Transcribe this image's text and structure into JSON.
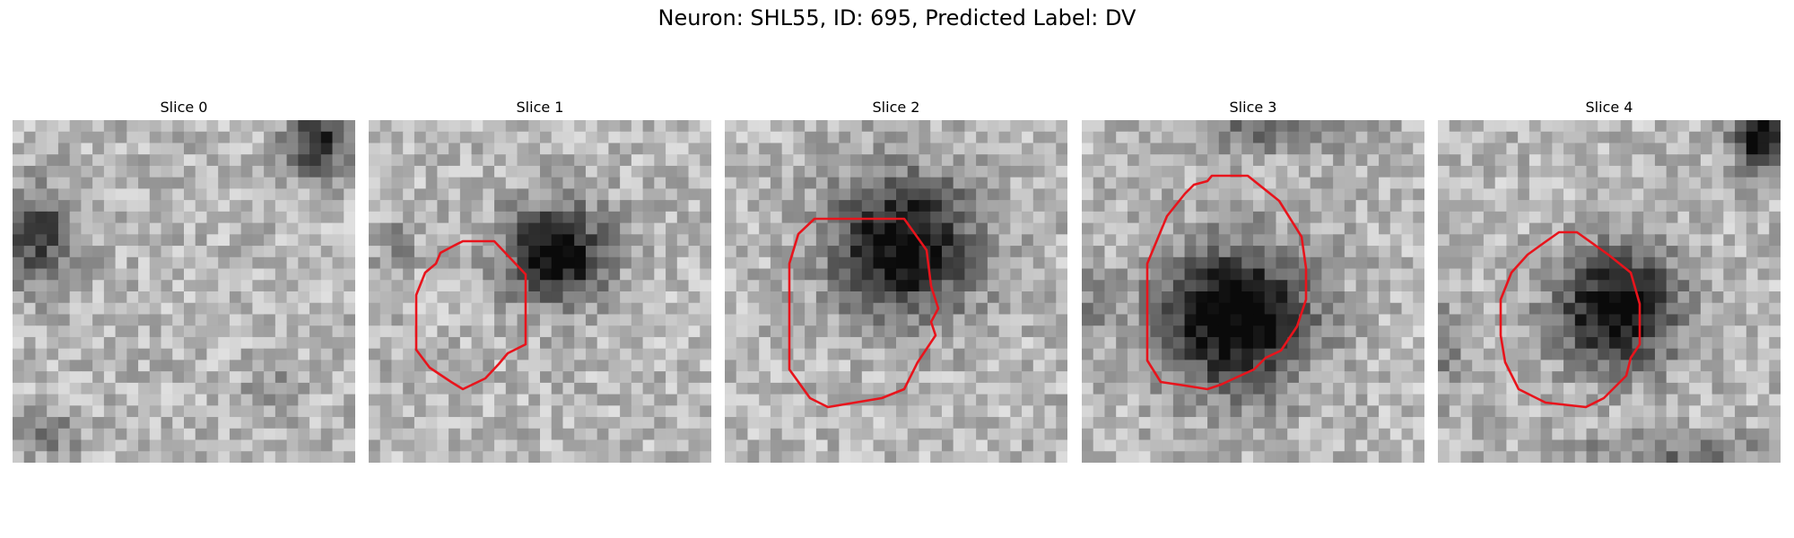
{
  "figure": {
    "title": "Neuron: SHL55, ID: 695, Predicted Label: DV"
  },
  "panels": [
    {
      "title": "Slice 0",
      "has_contour": false
    },
    {
      "title": "Slice 1",
      "has_contour": true
    },
    {
      "title": "Slice 2",
      "has_contour": true
    },
    {
      "title": "Slice 3",
      "has_contour": true
    },
    {
      "title": "Slice 4",
      "has_contour": true
    }
  ],
  "colors": {
    "contour": "#e8141c",
    "background": "#ffffff"
  }
}
